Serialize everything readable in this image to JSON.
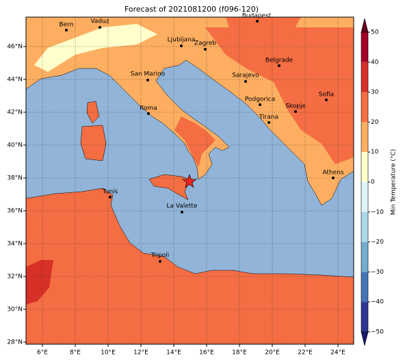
{
  "title": "Forecast of 2021081200 (f096-120)",
  "cities": [
    "Bern",
    "Vaduz",
    "Budapest",
    "Ljubljana",
    "Zagreb",
    "Belgrade",
    "San Marino",
    "Sarajevo",
    "Sofia",
    "Roma",
    "Podgorica",
    "Skopje",
    "Tirana",
    "Athens",
    "Tunis",
    "La Valette",
    "Tripoli"
  ],
  "xticks": [
    {
      "value": 6,
      "label": "6°E"
    },
    {
      "value": 8,
      "label": "8°E"
    },
    {
      "value": 10,
      "label": "10°E"
    },
    {
      "value": 12,
      "label": "12°E"
    },
    {
      "value": 14,
      "label": "14°E"
    },
    {
      "value": 16,
      "label": "16°E"
    },
    {
      "value": 18,
      "label": "18°E"
    },
    {
      "value": 20,
      "label": "20°E"
    },
    {
      "value": 22,
      "label": "22°E"
    },
    {
      "value": 24,
      "label": "24°E"
    }
  ],
  "yticks": [
    {
      "value": 28,
      "label": "28°N"
    },
    {
      "value": 30,
      "label": "30°N"
    },
    {
      "value": 32,
      "label": "32°N"
    },
    {
      "value": 34,
      "label": "34°N"
    },
    {
      "value": 36,
      "label": "36°N"
    },
    {
      "value": 38,
      "label": "38°N"
    },
    {
      "value": 40,
      "label": "40°N"
    },
    {
      "value": 42,
      "label": "42°N"
    },
    {
      "value": 44,
      "label": "44°N"
    },
    {
      "value": 46,
      "label": "46°N"
    }
  ],
  "grid": true,
  "colorbar": {
    "label": "Min Temperature (°C)",
    "ticks": [
      50,
      40,
      30,
      20,
      10,
      0,
      {
        "value": -10,
        "label": "−10"
      },
      {
        "value": -20,
        "label": "−20"
      },
      {
        "value": -30,
        "label": "−30"
      },
      {
        "value": -40,
        "label": "−40"
      },
      {
        "value": -50,
        "label": "−50"
      }
    ],
    "colors": [
      "#a50026",
      "#d73027",
      "#f46d43",
      "#fdae61",
      "#ffffcc",
      "#e0f3f8",
      "#abd9e9",
      "#74add1",
      "#4575b4",
      "#313695"
    ],
    "extend_colors": [
      "#67001f",
      "#1a1a6e"
    ]
  }
}
